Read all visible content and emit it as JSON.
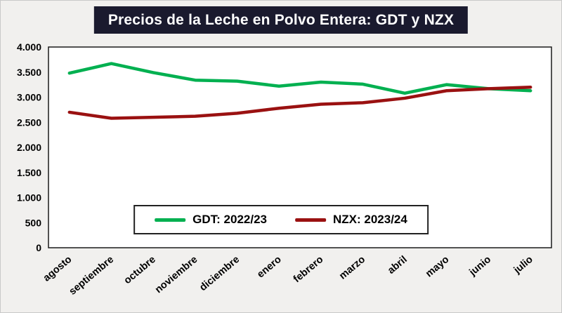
{
  "title": "Precios de la Leche en Polvo Entera: GDT y NZX",
  "colors": {
    "gdt": "#00b050",
    "nzx": "#9a1111",
    "title_bg": "#1a1a2e",
    "title_text": "#ffffff",
    "plot_bg": "#ffffff",
    "plot_border": "#1a1a1a",
    "page_bg": "#f1f0ee"
  },
  "chart_data": {
    "type": "line",
    "categories": [
      "agosto",
      "septiembre",
      "octubre",
      "noviembre",
      "diciembre",
      "enero",
      "febrero",
      "marzo",
      "abril",
      "mayo",
      "junio",
      "julio"
    ],
    "series": [
      {
        "name": "GDT: 2022/23",
        "color_key": "gdt",
        "values": [
          3480,
          3670,
          3490,
          3340,
          3320,
          3220,
          3300,
          3260,
          3080,
          3250,
          3170,
          3130
        ]
      },
      {
        "name": "NZX: 2023/24",
        "color_key": "nzx",
        "values": [
          2700,
          2580,
          2600,
          2620,
          2680,
          2780,
          2860,
          2890,
          2980,
          3130,
          3170,
          3200
        ]
      }
    ],
    "title": "Precios de la Leche en Polvo Entera: GDT y NZX",
    "xlabel": "",
    "ylabel": "",
    "ylim": [
      0,
      4000
    ],
    "yticks": [
      {
        "v": 0,
        "label": "0"
      },
      {
        "v": 500,
        "label": "500"
      },
      {
        "v": 1000,
        "label": "1.000"
      },
      {
        "v": 1500,
        "label": "1.500"
      },
      {
        "v": 2000,
        "label": "2.000"
      },
      {
        "v": 2500,
        "label": "2.500"
      },
      {
        "v": 3000,
        "label": "3.000"
      },
      {
        "v": 3500,
        "label": "3.500"
      },
      {
        "v": 4000,
        "label": "4.000"
      }
    ],
    "grid": false,
    "legend_position": "bottom-center-inside"
  }
}
